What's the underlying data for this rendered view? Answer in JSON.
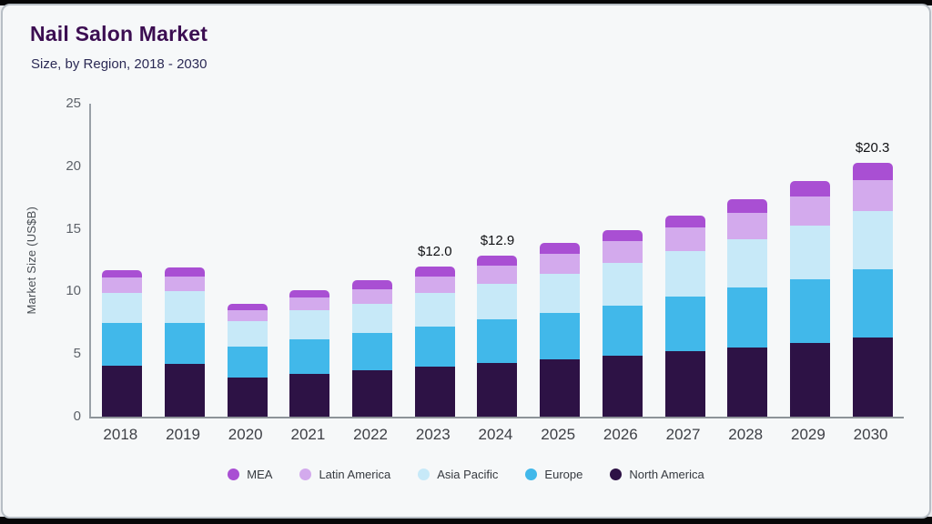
{
  "page": {
    "title": "Nail Salon Market",
    "subtitle": "Size, by Region, 2018 - 2030"
  },
  "chart_data": {
    "type": "bar",
    "stacked": true,
    "title": "Nail Salon Market",
    "subtitle": "Size, by Region, 2018 - 2030",
    "xlabel": "",
    "ylabel": "Market Size (US$B)",
    "ylim": [
      0,
      25
    ],
    "yticks": [
      0,
      5,
      10,
      15,
      20,
      25
    ],
    "grid": false,
    "categories": [
      "2018",
      "2019",
      "2020",
      "2021",
      "2022",
      "2023",
      "2024",
      "2025",
      "2026",
      "2027",
      "2028",
      "2029",
      "2030"
    ],
    "series": [
      {
        "name": "North America",
        "color": "#2d1245",
        "values": [
          4.1,
          4.2,
          3.1,
          3.4,
          3.7,
          4.0,
          4.3,
          4.6,
          4.9,
          5.2,
          5.5,
          5.9,
          6.3
        ]
      },
      {
        "name": "Europe",
        "color": "#41b8ea",
        "values": [
          3.4,
          3.3,
          2.5,
          2.8,
          3.0,
          3.2,
          3.5,
          3.7,
          4.0,
          4.4,
          4.8,
          5.1,
          5.5
        ]
      },
      {
        "name": "Asia Pacific",
        "color": "#c7e9f8",
        "values": [
          2.4,
          2.5,
          2.0,
          2.3,
          2.3,
          2.7,
          2.8,
          3.1,
          3.4,
          3.6,
          3.9,
          4.3,
          4.6
        ]
      },
      {
        "name": "Latin America",
        "color": "#d3aaed",
        "values": [
          1.2,
          1.2,
          0.9,
          1.0,
          1.2,
          1.3,
          1.5,
          1.6,
          1.7,
          1.9,
          2.1,
          2.3,
          2.5
        ]
      },
      {
        "name": "MEA",
        "color": "#a94fd3",
        "values": [
          0.6,
          0.7,
          0.5,
          0.6,
          0.7,
          0.8,
          0.8,
          0.9,
          0.9,
          1.0,
          1.1,
          1.2,
          1.4
        ]
      }
    ],
    "totals": [
      11.7,
      11.9,
      9.0,
      10.1,
      10.9,
      12.0,
      12.9,
      13.9,
      14.9,
      16.1,
      17.4,
      18.8,
      20.3
    ],
    "annotations": [
      {
        "category": "2023",
        "text": "$12.0"
      },
      {
        "category": "2024",
        "text": "$12.9"
      },
      {
        "category": "2030",
        "text": "$20.3"
      }
    ],
    "legend": {
      "position": "bottom",
      "items": [
        "MEA",
        "Latin America",
        "Asia Pacific",
        "Europe",
        "North America"
      ]
    }
  }
}
